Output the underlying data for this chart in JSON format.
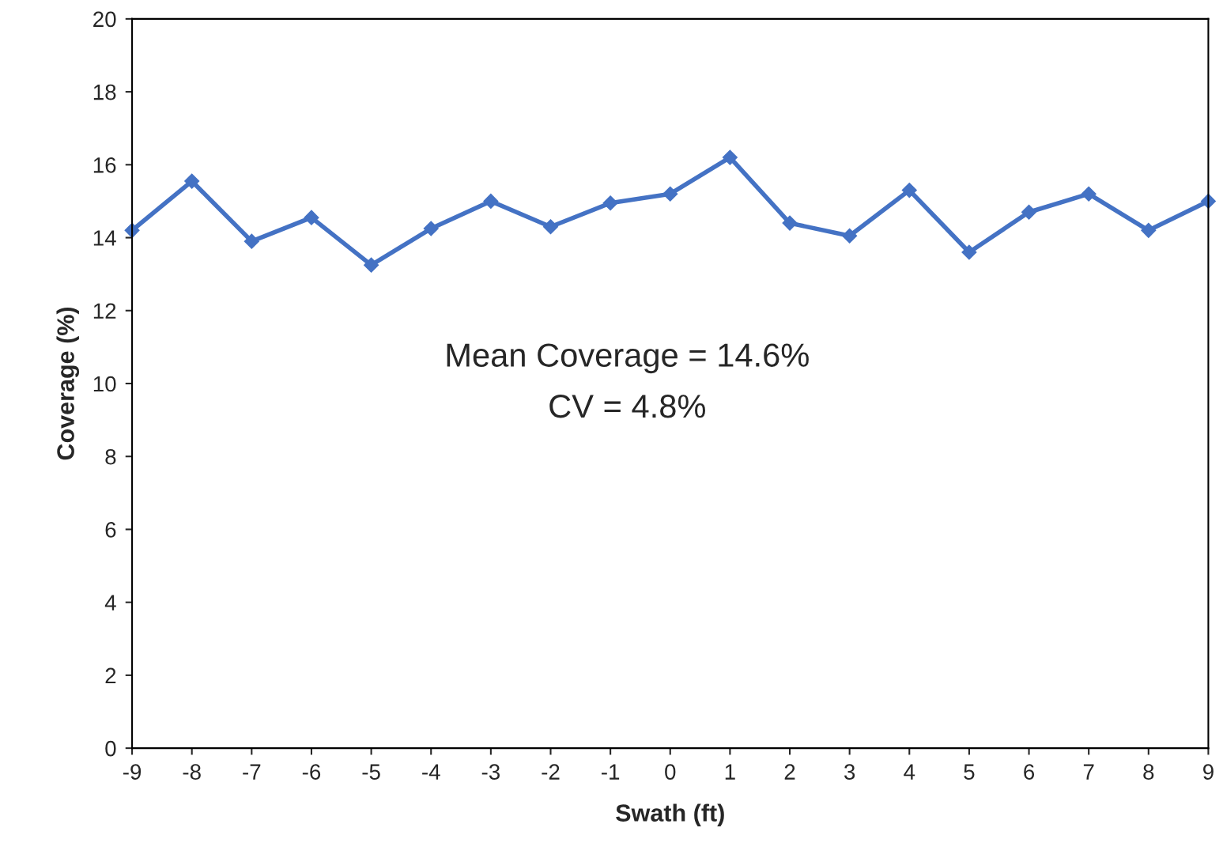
{
  "chart_data": {
    "type": "line",
    "xlabel": "Swath (ft)",
    "ylabel": "Coverage (%)",
    "x": [
      -9,
      -8,
      -7,
      -6,
      -5,
      -4,
      -3,
      -2,
      -1,
      0,
      1,
      2,
      3,
      4,
      5,
      6,
      7,
      8,
      9
    ],
    "series": [
      {
        "color": "#4472c4",
        "values": [
          14.2,
          15.55,
          13.9,
          14.55,
          13.25,
          14.25,
          15.0,
          14.3,
          14.95,
          15.2,
          16.2,
          14.4,
          14.05,
          15.3,
          13.6,
          14.7,
          15.2,
          14.2,
          15.0
        ]
      }
    ],
    "xlim": [
      -9,
      9
    ],
    "xticks": [
      -9,
      -8,
      -7,
      -6,
      -5,
      -4,
      -3,
      -2,
      -1,
      0,
      1,
      2,
      3,
      4,
      5,
      6,
      7,
      8,
      9
    ],
    "ylim": [
      0,
      20
    ],
    "yticks": [
      0,
      2,
      4,
      6,
      8,
      10,
      12,
      14,
      16,
      18,
      20
    ],
    "marker": "diamond",
    "line_style": "solid",
    "grid": false,
    "legend": false,
    "annotations": [
      "Mean Coverage = 14.6%",
      "CV = 4.8%"
    ]
  }
}
